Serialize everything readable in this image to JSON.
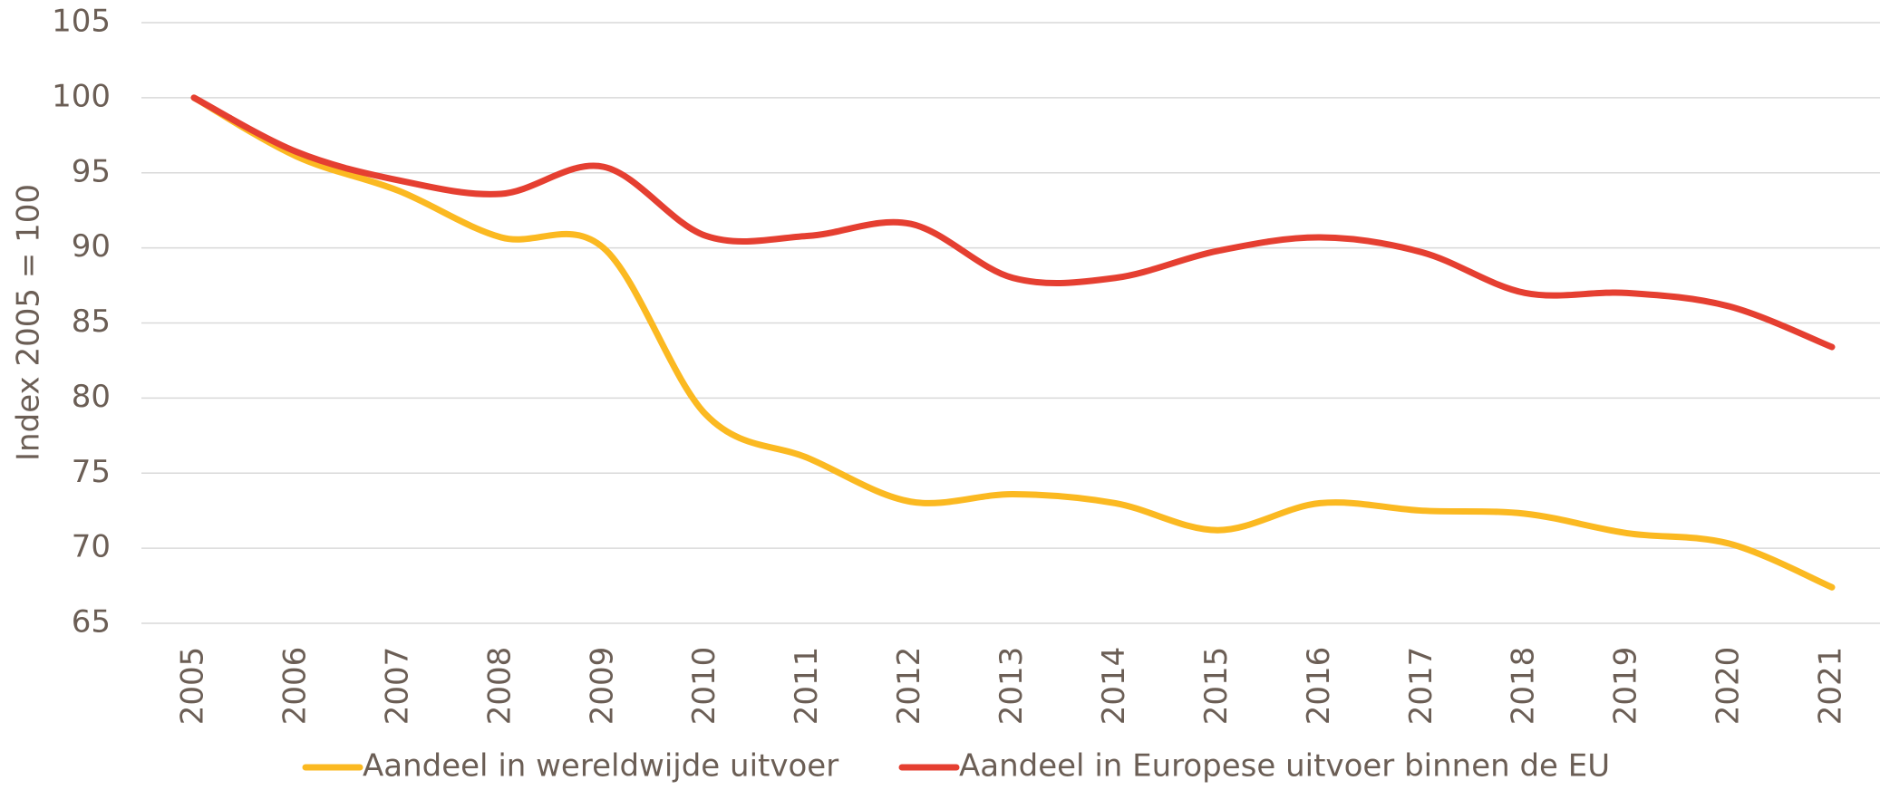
{
  "chart_data": {
    "type": "line",
    "y_label": "Index 2005 = 100",
    "categories": [
      "2005",
      "2006",
      "2007",
      "2008",
      "2009",
      "2010",
      "2011",
      "2012",
      "2013",
      "2014",
      "2015",
      "2016",
      "2017",
      "2018",
      "2019",
      "2020",
      "2021"
    ],
    "series": [
      {
        "name": "Aandeel in wereldwijde uitvoer",
        "color": "#fbb921",
        "values": [
          100,
          96.1,
          93.8,
          90.7,
          90.0,
          78.9,
          76.0,
          73.1,
          73.6,
          73.0,
          71.2,
          73.0,
          72.5,
          72.3,
          71.0,
          70.3,
          67.4
        ]
      },
      {
        "name": "Aandeel in Europese uitvoer binnen de EU",
        "color": "#e53f31",
        "values": [
          100,
          96.4,
          94.5,
          93.6,
          95.4,
          90.8,
          90.8,
          91.6,
          88.0,
          88.0,
          89.8,
          90.7,
          89.7,
          87.0,
          87.0,
          86.1,
          83.4
        ]
      }
    ],
    "ylim": [
      65,
      105
    ],
    "yticks": [
      65,
      70,
      75,
      80,
      85,
      90,
      95,
      100,
      105
    ],
    "grid": true,
    "legend": "bottom"
  }
}
